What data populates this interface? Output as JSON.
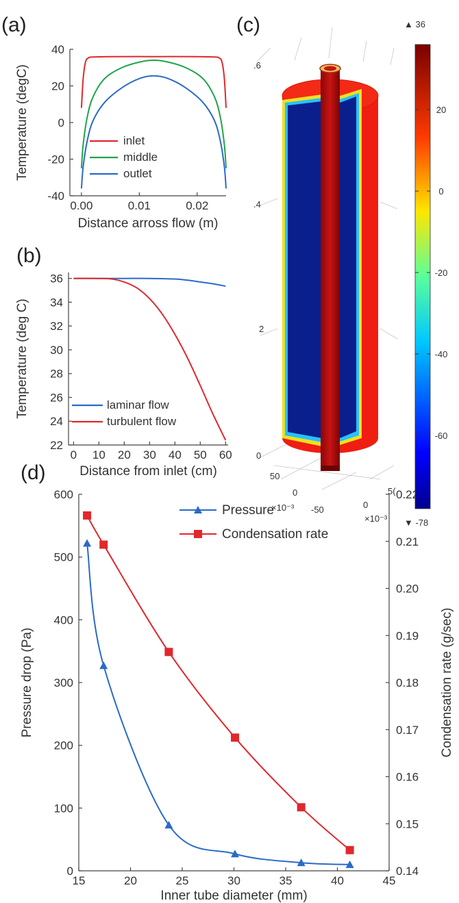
{
  "panels": {
    "a": "(a)",
    "b": "(b)",
    "c": "(c)",
    "d": "(d)"
  },
  "chart_data": [
    {
      "id": "a",
      "type": "line",
      "xlabel": "Distance arross  flow (m)",
      "ylabel": "Temperature (degC)",
      "xlim": [
        -0.002,
        0.025
      ],
      "ylim": [
        -40,
        40
      ],
      "xticks": [
        "0.00",
        "0.01",
        "0.02"
      ],
      "xtick_values": [
        0,
        0.01,
        0.02
      ],
      "yticks": [
        "40",
        "20",
        "0",
        "-20",
        "-40"
      ],
      "ytick_values": [
        40,
        20,
        0,
        -20,
        -40
      ],
      "legend_position": "lower-left",
      "series": [
        {
          "name": "inlet",
          "color": "#e0282d",
          "x": [
            0.0,
            0.0003,
            0.0007,
            0.0012,
            0.002,
            0.005,
            0.0125,
            0.02,
            0.023,
            0.0238,
            0.0243,
            0.0247,
            0.025
          ],
          "y": [
            8,
            24,
            33,
            35.3,
            35.8,
            36,
            36,
            36,
            35.8,
            35.3,
            33,
            24,
            8
          ]
        },
        {
          "name": "middle",
          "color": "#1fa34a",
          "x": [
            0.0,
            0.0003,
            0.001,
            0.002,
            0.004,
            0.007,
            0.01,
            0.0125,
            0.015,
            0.018,
            0.021,
            0.023,
            0.024,
            0.0247,
            0.025
          ],
          "y": [
            -25,
            -12,
            3,
            14,
            24,
            30,
            33,
            34,
            33,
            30,
            24,
            14,
            3,
            -12,
            -25
          ]
        },
        {
          "name": "outlet",
          "color": "#2a6ac8",
          "x": [
            0.0,
            0.0003,
            0.001,
            0.002,
            0.004,
            0.007,
            0.01,
            0.0125,
            0.015,
            0.018,
            0.021,
            0.023,
            0.024,
            0.0247,
            0.025
          ],
          "y": [
            -36,
            -24,
            -10,
            1,
            11,
            19,
            24,
            25.5,
            24,
            19,
            11,
            1,
            -10,
            -24,
            -36
          ]
        }
      ]
    },
    {
      "id": "b",
      "type": "line",
      "xlabel": "Distance from inlet (cm)",
      "ylabel": "Temperature (deg C)",
      "xlim": [
        -2,
        61
      ],
      "ylim": [
        22,
        36.5
      ],
      "xticks": [
        "0",
        "10",
        "20",
        "30",
        "40",
        "50",
        "60"
      ],
      "xtick_values": [
        0,
        10,
        20,
        30,
        40,
        50,
        60
      ],
      "yticks": [
        "36",
        "34",
        "32",
        "30",
        "28",
        "26",
        "24",
        "22"
      ],
      "ytick_values": [
        36,
        34,
        32,
        30,
        28,
        26,
        24,
        22
      ],
      "legend_position": "lower-left",
      "series": [
        {
          "name": "laminar flow",
          "color": "#2a6ac8",
          "x": [
            0,
            10,
            20,
            30,
            40,
            45,
            50,
            55,
            60
          ],
          "y": [
            36,
            36,
            36,
            36,
            35.95,
            35.85,
            35.7,
            35.55,
            35.35
          ]
        },
        {
          "name": "turbulent flow",
          "color": "#e0282d",
          "x": [
            0,
            10,
            15,
            20,
            25,
            30,
            35,
            40,
            45,
            50,
            55,
            60
          ],
          "y": [
            36,
            36,
            35.95,
            35.7,
            35.2,
            34.3,
            33.0,
            31.3,
            29.3,
            27.0,
            24.6,
            22.4
          ]
        }
      ]
    },
    {
      "id": "c",
      "type": "3d-temperature-field",
      "colorbar": {
        "max_label": "▲ 36",
        "min_label": "▼ -78",
        "ticks": [
          "20",
          "0",
          "-20",
          "-40",
          "-60"
        ],
        "tick_values": [
          20,
          0,
          -20,
          -40,
          -60
        ],
        "range": [
          -78,
          36
        ]
      },
      "axis_labels": [
        ".6",
        ".4",
        "2",
        "0",
        "50",
        "0",
        "-50",
        "0",
        "5(",
        "×10⁻³",
        "×10⁻³"
      ],
      "colors": {
        "hot": "#f01d10",
        "cold": "#0b1f8c",
        "inner_tube": "#b01010"
      }
    },
    {
      "id": "d",
      "type": "line",
      "xlabel": "Inner tube diameter (mm)",
      "ylabel": "Pressure drop (Pa)",
      "y2label": "Condensation rate (g/sec)",
      "xlim": [
        15,
        45
      ],
      "ylim": [
        0,
        600
      ],
      "y2lim": [
        0.14,
        0.22
      ],
      "xticks": [
        "15",
        "20",
        "25",
        "30",
        "35",
        "40",
        "45"
      ],
      "xtick_values": [
        15,
        20,
        25,
        30,
        35,
        40,
        45
      ],
      "yticks": [
        "600",
        "500",
        "400",
        "300",
        "200",
        "100",
        "0"
      ],
      "ytick_values": [
        600,
        500,
        400,
        300,
        200,
        100,
        0
      ],
      "y2ticks": [
        "0.22",
        "0.21",
        "0.20",
        "0.19",
        "0.18",
        "0.17",
        "0.16",
        "0.15",
        "0.14"
      ],
      "y2tick_values": [
        0.22,
        0.21,
        0.2,
        0.19,
        0.18,
        0.17,
        0.16,
        0.15,
        0.14
      ],
      "legend_position": "top-right",
      "series": [
        {
          "name": "Pressure",
          "color": "#2a6ac8",
          "marker": "triangle",
          "axis": "left",
          "x": [
            15.8,
            17.4,
            23.7,
            30.1,
            36.5,
            41.2
          ],
          "y": [
            522,
            327,
            73,
            27,
            13,
            10
          ]
        },
        {
          "name": "Condensation rate",
          "color": "#e0282d",
          "marker": "square",
          "axis": "right",
          "x": [
            15.8,
            17.4,
            23.7,
            30.1,
            36.5,
            41.2
          ],
          "y": [
            0.2155,
            0.2093,
            0.1865,
            0.1683,
            0.1535,
            0.1444
          ]
        }
      ]
    }
  ]
}
